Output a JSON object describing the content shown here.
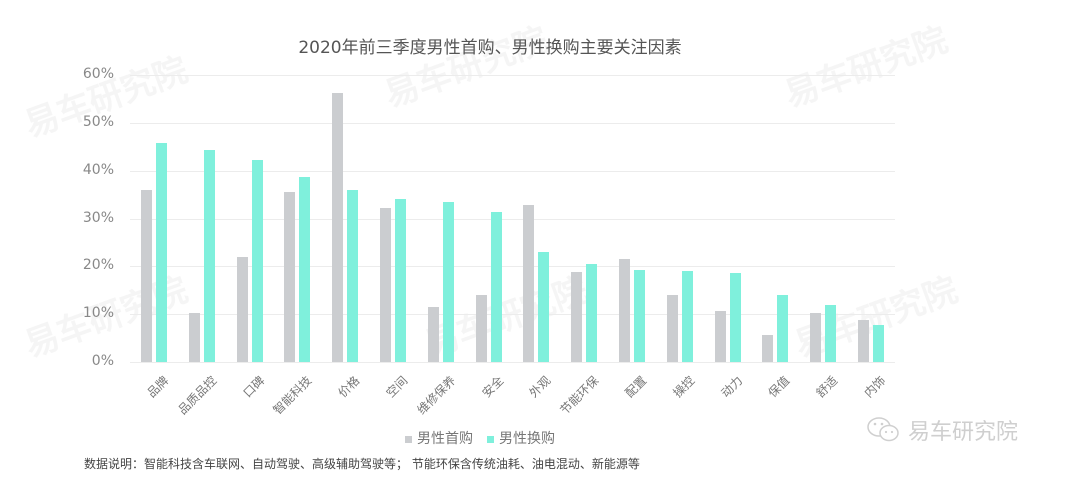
{
  "title": "2020年前三季度男性首购、男性换购主要关注因素",
  "legend": [
    {
      "label": "男性首购",
      "color": "#cbcdd0"
    },
    {
      "label": "男性换购",
      "color": "#7ff0dc"
    }
  ],
  "note": "数据说明：智能科技含车联网、自动驾驶、高级辅助驾驶等； 节能环保含传统油耗、油电混动、新能源等",
  "brand": {
    "name": "易车研究院",
    "icon": "wechat-icon"
  },
  "watermark": "易车研究院",
  "y_ticks": [
    "0%",
    "10%",
    "20%",
    "30%",
    "40%",
    "50%",
    "60%"
  ],
  "chart_data": {
    "type": "bar",
    "title": "2020年前三季度男性首购、男性换购主要关注因素",
    "xlabel": "",
    "ylabel": "",
    "ylim": [
      0,
      60
    ],
    "y_unit": "%",
    "grid": true,
    "legend_position": "bottom",
    "categories": [
      "品牌",
      "品质品控",
      "口碑",
      "智能科技",
      "价格",
      "空间",
      "维修保养",
      "安全",
      "外观",
      "节能环保",
      "配置",
      "操控",
      "动力",
      "保值",
      "舒适",
      "内饰"
    ],
    "series": [
      {
        "name": "男性首购",
        "color": "#cbcdd0",
        "values": [
          36.0,
          10.3,
          22.0,
          35.6,
          56.3,
          32.2,
          11.5,
          14.0,
          32.8,
          18.8,
          21.5,
          14.0,
          10.7,
          5.6,
          10.3,
          8.8
        ]
      },
      {
        "name": "男性换购",
        "color": "#7ff0dc",
        "values": [
          45.8,
          44.3,
          42.2,
          38.7,
          36.0,
          34.1,
          33.5,
          31.4,
          23.0,
          20.5,
          19.2,
          19.0,
          18.6,
          14.0,
          11.9,
          7.7
        ]
      }
    ]
  }
}
